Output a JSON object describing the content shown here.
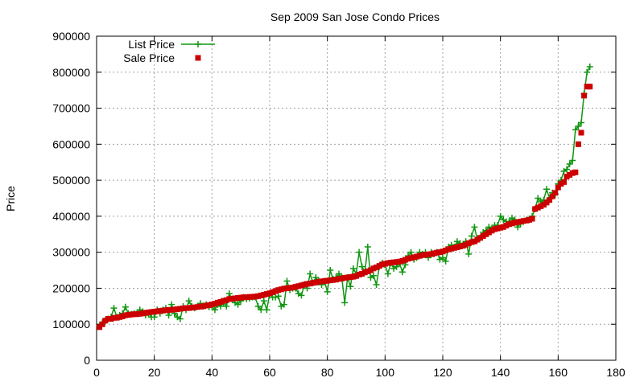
{
  "chart_data": {
    "type": "scatter",
    "title": "Sep 2009 San Jose Condo Prices",
    "xlabel": "",
    "ylabel": "Price",
    "xlim": [
      0,
      180
    ],
    "ylim": [
      0,
      900000
    ],
    "x_ticks": [
      "0",
      "20",
      "40",
      "60",
      "80",
      "100",
      "120",
      "140",
      "160",
      "180"
    ],
    "y_ticks": [
      "0",
      "100000",
      "200000",
      "300000",
      "400000",
      "500000",
      "600000",
      "700000",
      "800000",
      "900000"
    ],
    "grid": true,
    "legend_position": "top-left",
    "series": [
      {
        "name": "List Price",
        "style": "line-with-plus-markers",
        "color": "#109610",
        "x": [
          1,
          2,
          3,
          4,
          5,
          6,
          7,
          8,
          9,
          10,
          11,
          12,
          13,
          14,
          15,
          16,
          17,
          18,
          19,
          20,
          21,
          22,
          23,
          24,
          25,
          26,
          27,
          28,
          29,
          30,
          31,
          32,
          33,
          34,
          35,
          36,
          37,
          38,
          39,
          40,
          41,
          42,
          43,
          44,
          45,
          46,
          47,
          48,
          49,
          50,
          51,
          52,
          53,
          54,
          55,
          56,
          57,
          58,
          59,
          60,
          61,
          62,
          63,
          64,
          65,
          66,
          67,
          68,
          69,
          70,
          71,
          72,
          73,
          74,
          75,
          76,
          77,
          78,
          79,
          80,
          81,
          82,
          83,
          84,
          85,
          86,
          87,
          88,
          89,
          90,
          91,
          92,
          93,
          94,
          95,
          96,
          97,
          98,
          99,
          100,
          101,
          102,
          103,
          104,
          105,
          106,
          107,
          108,
          109,
          110,
          111,
          112,
          113,
          114,
          115,
          116,
          117,
          118,
          119,
          120,
          121,
          122,
          123,
          124,
          125,
          126,
          127,
          128,
          129,
          130,
          131,
          132,
          133,
          134,
          135,
          136,
          137,
          138,
          139,
          140,
          141,
          142,
          143,
          144,
          145,
          146,
          147,
          148,
          149,
          150,
          151,
          152,
          153,
          154,
          155,
          156,
          157,
          158,
          159,
          160,
          161,
          162,
          163,
          164,
          165,
          166,
          167,
          168,
          169,
          170,
          171
        ],
        "y": [
          95000,
          105000,
          110000,
          115000,
          120000,
          145000,
          120000,
          125000,
          130000,
          148000,
          130000,
          128000,
          130000,
          130000,
          140000,
          135000,
          125000,
          130000,
          120000,
          120000,
          140000,
          130000,
          140000,
          145000,
          125000,
          155000,
          130000,
          120000,
          115000,
          150000,
          140000,
          165000,
          150000,
          145000,
          150000,
          158000,
          150000,
          155000,
          148000,
          150000,
          140000,
          155000,
          150000,
          160000,
          150000,
          185000,
          170000,
          160000,
          155000,
          165000,
          175000,
          170000,
          172000,
          175000,
          175000,
          150000,
          140000,
          165000,
          140000,
          185000,
          175000,
          175000,
          178000,
          150000,
          155000,
          220000,
          195000,
          200000,
          200000,
          185000,
          180000,
          210000,
          200000,
          240000,
          215000,
          230000,
          220000,
          210000,
          220000,
          190000,
          250000,
          225000,
          230000,
          240000,
          230000,
          160000,
          230000,
          205000,
          255000,
          240000,
          300000,
          260000,
          245000,
          315000,
          230000,
          235000,
          210000,
          260000,
          270000,
          265000,
          240000,
          270000,
          255000,
          260000,
          270000,
          245000,
          265000,
          290000,
          300000,
          280000,
          285000,
          300000,
          295000,
          300000,
          285000,
          300000,
          295000,
          300000,
          280000,
          285000,
          275000,
          315000,
          320000,
          315000,
          330000,
          325000,
          320000,
          330000,
          295000,
          345000,
          370000,
          335000,
          340000,
          355000,
          360000,
          370000,
          365000,
          375000,
          375000,
          400000,
          390000,
          385000,
          385000,
          395000,
          390000,
          370000,
          380000,
          385000,
          390000,
          390000,
          400000,
          420000,
          450000,
          440000,
          445000,
          475000,
          450000,
          465000,
          460000,
          490000,
          500000,
          525000,
          530000,
          545000,
          555000,
          640000,
          650000,
          660000,
          740000,
          800000,
          815000
        ]
      },
      {
        "name": "Sale Price",
        "style": "square-markers",
        "color": "#cc0000",
        "x": [
          1,
          2,
          3,
          4,
          5,
          6,
          7,
          8,
          9,
          10,
          11,
          12,
          13,
          14,
          15,
          16,
          17,
          18,
          19,
          20,
          21,
          22,
          23,
          24,
          25,
          26,
          27,
          28,
          29,
          30,
          31,
          32,
          33,
          34,
          35,
          36,
          37,
          38,
          39,
          40,
          41,
          42,
          43,
          44,
          45,
          46,
          47,
          48,
          49,
          50,
          51,
          52,
          53,
          54,
          55,
          56,
          57,
          58,
          59,
          60,
          61,
          62,
          63,
          64,
          65,
          66,
          67,
          68,
          69,
          70,
          71,
          72,
          73,
          74,
          75,
          76,
          77,
          78,
          79,
          80,
          81,
          82,
          83,
          84,
          85,
          86,
          87,
          88,
          89,
          90,
          91,
          92,
          93,
          94,
          95,
          96,
          97,
          98,
          99,
          100,
          101,
          102,
          103,
          104,
          105,
          106,
          107,
          108,
          109,
          110,
          111,
          112,
          113,
          114,
          115,
          116,
          117,
          118,
          119,
          120,
          121,
          122,
          123,
          124,
          125,
          126,
          127,
          128,
          129,
          130,
          131,
          132,
          133,
          134,
          135,
          136,
          137,
          138,
          139,
          140,
          141,
          142,
          143,
          144,
          145,
          146,
          147,
          148,
          149,
          150,
          151,
          152,
          153,
          154,
          155,
          156,
          157,
          158,
          159,
          160,
          161,
          162,
          163,
          164,
          165,
          166,
          167,
          168,
          169,
          170,
          171
        ],
        "y": [
          92000,
          100000,
          110000,
          115000,
          115000,
          118000,
          118000,
          120000,
          122000,
          125000,
          126000,
          127000,
          128000,
          128000,
          129000,
          130000,
          132000,
          133000,
          134000,
          135000,
          136000,
          137000,
          138000,
          139000,
          140000,
          140000,
          141000,
          142000,
          143000,
          144000,
          145000,
          145000,
          146000,
          147000,
          148000,
          149000,
          150000,
          152000,
          153000,
          155000,
          157000,
          160000,
          162000,
          165000,
          167000,
          170000,
          171000,
          172000,
          173000,
          174000,
          175000,
          175000,
          176000,
          176000,
          177000,
          178000,
          180000,
          182000,
          184000,
          186000,
          189000,
          192000,
          195000,
          197000,
          199000,
          200000,
          201000,
          202000,
          204000,
          206000,
          208000,
          210000,
          212000,
          213000,
          215000,
          216000,
          218000,
          219000,
          220000,
          221000,
          222000,
          223000,
          224000,
          226000,
          227000,
          229000,
          230000,
          231000,
          232000,
          234000,
          238000,
          240000,
          244000,
          247000,
          250000,
          255000,
          258000,
          262000,
          266000,
          268000,
          270000,
          271000,
          272000,
          273000,
          274000,
          276000,
          279000,
          282000,
          284000,
          286000,
          288000,
          290000,
          292000,
          293000,
          294000,
          295000,
          297000,
          299000,
          300000,
          302000,
          305000,
          308000,
          310000,
          312000,
          314000,
          316000,
          318000,
          321000,
          325000,
          328000,
          330000,
          335000,
          340000,
          345000,
          350000,
          355000,
          360000,
          364000,
          366000,
          368000,
          370000,
          374000,
          378000,
          380000,
          382000,
          384000,
          385000,
          387000,
          388000,
          390000,
          393000,
          420000,
          424000,
          428000,
          432000,
          438000,
          445000,
          455000,
          465000,
          480000,
          490000,
          495000,
          510000,
          515000,
          520000,
          522000,
          600000,
          632000,
          735000,
          760000,
          760000
        ]
      }
    ]
  }
}
